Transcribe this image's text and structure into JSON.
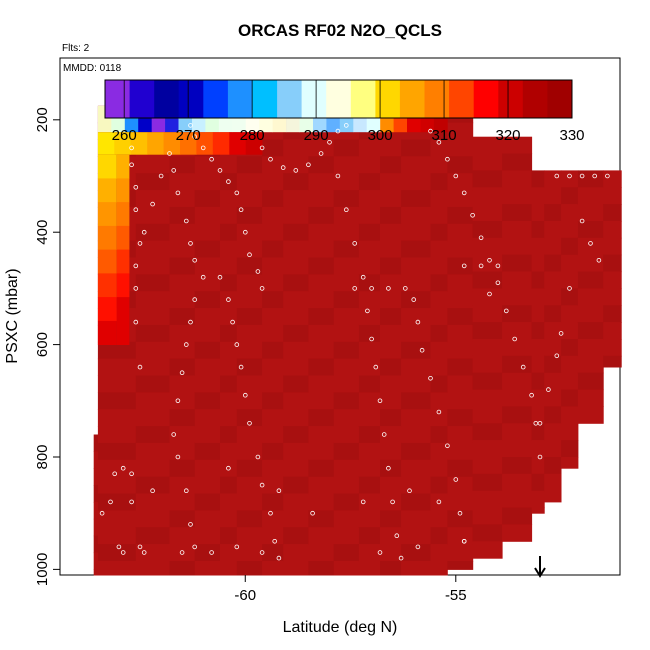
{
  "chart_data": {
    "type": "heatmap",
    "title": "ORCAS RF02 N2O_QCLS",
    "subtitle": "Flts: 2",
    "annotation": "MMDD: 0118",
    "xlabel": "Latitude (deg N)",
    "ylabel": "PSXC (mbar)",
    "xlim": [
      -64.4,
      -51.1
    ],
    "ylim": [
      1010,
      90
    ],
    "y_reversed": true,
    "x_ticks": [
      -60,
      -55
    ],
    "y_ticks": [
      200,
      400,
      600,
      800,
      1000
    ],
    "colorbar": {
      "range": [
        257,
        330
      ],
      "ticks": [
        260,
        270,
        280,
        290,
        300,
        310,
        320,
        330
      ],
      "colors": [
        "#8a2be2",
        "#2000d0",
        "#0000a0",
        "#0000c0",
        "#0040ff",
        "#1e90ff",
        "#00bfff",
        "#87cefa",
        "#e0ffff",
        "#ffffe0",
        "#ffff80",
        "#ffd700",
        "#ffa500",
        "#ff7f00",
        "#ff4500",
        "#ff0000",
        "#cc0000",
        "#b00000",
        "#a00000"
      ]
    },
    "cell_colors": {
      "main": "#b21212",
      "alt": "#a81010",
      "top_band": [
        "#ffe600",
        "#ffd000",
        "#ffc000",
        "#ffa500",
        "#ff8c00",
        "#ff7000",
        "#ff5000",
        "#ff2a00",
        "#e00000",
        "#cc0000"
      ],
      "left_column": [
        "#ffd700",
        "#ffb000",
        "#ff9500",
        "#ff7a00",
        "#ff5a00",
        "#ff3000",
        "#ff1000",
        "#e00000"
      ],
      "upper_row": [
        "#f8f8c0",
        "#e0ffe0",
        "#1e90ff",
        "#0000c8",
        "#8a2be2",
        "#2020e0",
        "#87cefa",
        "#c8f0ff",
        "#e0ffe0",
        "#eefff0",
        "#f0fff0",
        "#fffff0",
        "#ffffe0",
        "#fff8d0",
        "#f5f5dc",
        "#e8ffe8",
        "#a0d8ff",
        "#60b0ff",
        "#87cefa",
        "#c8e8ff",
        "#e0ffff",
        "#ff8c00",
        "#ff4500",
        "#e00000",
        "#d00000",
        "#c00000"
      ]
    },
    "data_extent": {
      "profile_lat": [
        -63.6,
        -63.5,
        -62.6,
        -61.8,
        -61.2,
        -60.6,
        -60.2,
        -59.6,
        -59.1,
        -58.5,
        -57.9,
        -57.3,
        -56.8,
        -56.3,
        -55.6,
        -55.2,
        -54.6,
        -53.9,
        -53.2,
        -52.9,
        -52.5,
        -52.1,
        -51.5
      ],
      "top_pressure": [
        760,
        175,
        175,
        175,
        175,
        175,
        175,
        175,
        175,
        175,
        175,
        175,
        175,
        175,
        175,
        175,
        230,
        230,
        290,
        290,
        290,
        290,
        290
      ],
      "bottom_pressure": [
        1010,
        1010,
        1010,
        1010,
        1010,
        1010,
        1010,
        1010,
        1010,
        1010,
        1010,
        1010,
        1010,
        1010,
        1010,
        1000,
        980,
        950,
        900,
        880,
        820,
        740,
        640
      ]
    },
    "flight_track_points": [
      [
        -63.1,
        830
      ],
      [
        -63.2,
        880
      ],
      [
        -63.0,
        960
      ],
      [
        -62.9,
        970
      ],
      [
        -62.9,
        820
      ],
      [
        -62.7,
        830
      ],
      [
        -62.7,
        880
      ],
      [
        -62.5,
        960
      ],
      [
        -62.4,
        970
      ],
      [
        -62.6,
        460
      ],
      [
        -62.4,
        400
      ],
      [
        -62.2,
        350
      ],
      [
        -62.0,
        300
      ],
      [
        -62.7,
        250
      ],
      [
        -62.7,
        280
      ],
      [
        -62.6,
        320
      ],
      [
        -62.6,
        360
      ],
      [
        -62.5,
        420
      ],
      [
        -62.6,
        500
      ],
      [
        -62.6,
        560
      ],
      [
        -62.5,
        640
      ],
      [
        -61.8,
        260
      ],
      [
        -61.7,
        290
      ],
      [
        -61.6,
        330
      ],
      [
        -61.4,
        380
      ],
      [
        -61.3,
        420
      ],
      [
        -61.2,
        450
      ],
      [
        -61.0,
        480
      ],
      [
        -61.2,
        520
      ],
      [
        -61.3,
        560
      ],
      [
        -61.4,
        600
      ],
      [
        -61.5,
        650
      ],
      [
        -61.6,
        700
      ],
      [
        -61.7,
        760
      ],
      [
        -61.6,
        800
      ],
      [
        -61.4,
        860
      ],
      [
        -61.3,
        920
      ],
      [
        -61.2,
        960
      ],
      [
        -61.3,
        210
      ],
      [
        -61.2,
        230
      ],
      [
        -61.0,
        250
      ],
      [
        -60.8,
        270
      ],
      [
        -60.6,
        290
      ],
      [
        -60.4,
        310
      ],
      [
        -60.2,
        330
      ],
      [
        -60.1,
        360
      ],
      [
        -60.0,
        400
      ],
      [
        -59.9,
        440
      ],
      [
        -59.7,
        470
      ],
      [
        -59.6,
        500
      ],
      [
        -60.6,
        480
      ],
      [
        -60.4,
        520
      ],
      [
        -60.3,
        560
      ],
      [
        -60.2,
        600
      ],
      [
        -60.1,
        640
      ],
      [
        -60.0,
        690
      ],
      [
        -59.9,
        740
      ],
      [
        -59.7,
        800
      ],
      [
        -59.6,
        850
      ],
      [
        -59.4,
        900
      ],
      [
        -59.3,
        950
      ],
      [
        -59.2,
        980
      ],
      [
        -59.6,
        250
      ],
      [
        -59.4,
        270
      ],
      [
        -59.1,
        285
      ],
      [
        -58.8,
        290
      ],
      [
        -58.5,
        280
      ],
      [
        -58.2,
        260
      ],
      [
        -58.0,
        240
      ],
      [
        -57.8,
        220
      ],
      [
        -57.6,
        210
      ],
      [
        -57.8,
        300
      ],
      [
        -57.6,
        360
      ],
      [
        -57.4,
        420
      ],
      [
        -57.2,
        480
      ],
      [
        -57.1,
        540
      ],
      [
        -57.0,
        590
      ],
      [
        -56.9,
        640
      ],
      [
        -56.8,
        700
      ],
      [
        -56.7,
        760
      ],
      [
        -56.6,
        820
      ],
      [
        -56.5,
        880
      ],
      [
        -56.4,
        940
      ],
      [
        -56.3,
        980
      ],
      [
        -57.4,
        500
      ],
      [
        -57.0,
        500
      ],
      [
        -56.6,
        500
      ],
      [
        -56.2,
        500
      ],
      [
        -56.0,
        520
      ],
      [
        -55.9,
        560
      ],
      [
        -55.8,
        610
      ],
      [
        -55.6,
        660
      ],
      [
        -55.4,
        720
      ],
      [
        -55.2,
        780
      ],
      [
        -55.0,
        840
      ],
      [
        -54.9,
        900
      ],
      [
        -54.8,
        950
      ],
      [
        -55.6,
        220
      ],
      [
        -55.4,
        240
      ],
      [
        -55.2,
        270
      ],
      [
        -55.0,
        300
      ],
      [
        -54.8,
        330
      ],
      [
        -54.6,
        370
      ],
      [
        -54.4,
        410
      ],
      [
        -54.2,
        450
      ],
      [
        -54.0,
        490
      ],
      [
        -53.8,
        540
      ],
      [
        -53.6,
        590
      ],
      [
        -53.4,
        640
      ],
      [
        -53.2,
        690
      ],
      [
        -53.1,
        740
      ],
      [
        -53.0,
        800
      ],
      [
        -54.8,
        460
      ],
      [
        -54.4,
        460
      ],
      [
        -54.0,
        460
      ],
      [
        -54.2,
        510
      ],
      [
        -52.6,
        300
      ],
      [
        -52.3,
        300
      ],
      [
        -52.0,
        300
      ],
      [
        -51.7,
        300
      ],
      [
        -51.4,
        300
      ],
      [
        -52.0,
        380
      ],
      [
        -51.8,
        420
      ],
      [
        -51.6,
        450
      ],
      [
        -52.3,
        500
      ],
      [
        -52.5,
        580
      ],
      [
        -52.6,
        620
      ],
      [
        -52.8,
        680
      ],
      [
        -53.0,
        740
      ],
      [
        -61.5,
        970
      ],
      [
        -60.8,
        970
      ],
      [
        -60.2,
        960
      ],
      [
        -59.6,
        970
      ],
      [
        -56.8,
        970
      ],
      [
        -55.9,
        960
      ],
      [
        -54.8,
        950
      ],
      [
        -63.8,
        880
      ],
      [
        -63.4,
        900
      ],
      [
        -62.2,
        860
      ],
      [
        -60.4,
        820
      ],
      [
        -59.2,
        860
      ],
      [
        -58.4,
        900
      ],
      [
        -57.2,
        880
      ],
      [
        -56.1,
        860
      ],
      [
        -55.4,
        880
      ]
    ],
    "top_row_points": [
      [
        -62.7,
        175
      ],
      [
        -62.4,
        175
      ],
      [
        -62.1,
        175
      ],
      [
        -61.4,
        180
      ],
      [
        -60.8,
        180
      ],
      [
        -60.2,
        185
      ],
      [
        -58.1,
        175
      ],
      [
        -57.8,
        175
      ],
      [
        -57.5,
        175
      ],
      [
        -56.8,
        175
      ],
      [
        -56.5,
        175
      ],
      [
        -56.2,
        175
      ],
      [
        -55.9,
        175
      ]
    ],
    "marker_arrow_lat": -53.0
  }
}
